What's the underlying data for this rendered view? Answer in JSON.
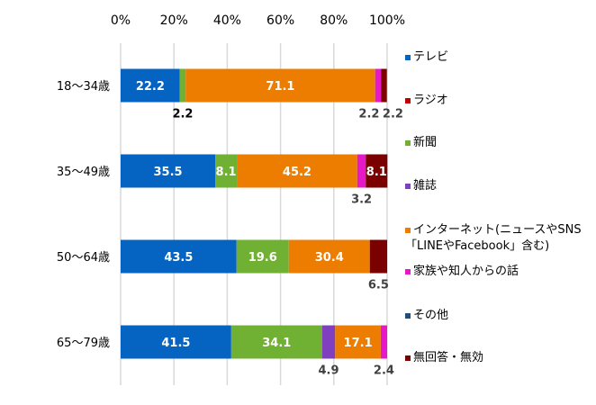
{
  "chart_data": {
    "type": "bar",
    "orientation": "horizontal",
    "stacked": true,
    "categories": [
      "18〜34歳",
      "35〜49歳",
      "50〜64歳",
      "65〜79歳"
    ],
    "x_ticks": [
      "0%",
      "20%",
      "40%",
      "60%",
      "80%",
      "100%"
    ],
    "xlim": [
      0,
      100
    ],
    "grid": true,
    "legend_position": "right",
    "series": [
      {
        "name": "テレビ",
        "color": "#0563C1",
        "values": [
          22.2,
          35.5,
          43.5,
          41.5
        ]
      },
      {
        "name": "ラジオ",
        "color": "#C00000",
        "values": [
          0,
          0,
          0,
          0
        ]
      },
      {
        "name": "新聞",
        "color": "#70B032",
        "values": [
          2.2,
          8.1,
          19.6,
          34.1
        ]
      },
      {
        "name": "雑誌",
        "color": "#7F3FBF",
        "values": [
          0,
          0,
          0,
          4.9
        ]
      },
      {
        "name": "インターネット(ニュースやSNS「LINEやFacebook」含む)",
        "legend_lines": [
          "インターネット(ニュースやSNS",
          "「LINEやFacebook」含む)"
        ],
        "color": "#ED7D00",
        "values": [
          71.1,
          45.2,
          30.4,
          17.1
        ]
      },
      {
        "name": "家族や知人からの話",
        "color": "#E619C8",
        "values": [
          2.2,
          3.2,
          0,
          2.4
        ]
      },
      {
        "name": "その他",
        "color": "#1F4E79",
        "values": [
          0,
          0,
          0,
          0
        ]
      },
      {
        "name": "無回答・無効",
        "color": "#7B0000",
        "values": [
          2.2,
          8.1,
          6.5,
          0
        ]
      }
    ]
  }
}
